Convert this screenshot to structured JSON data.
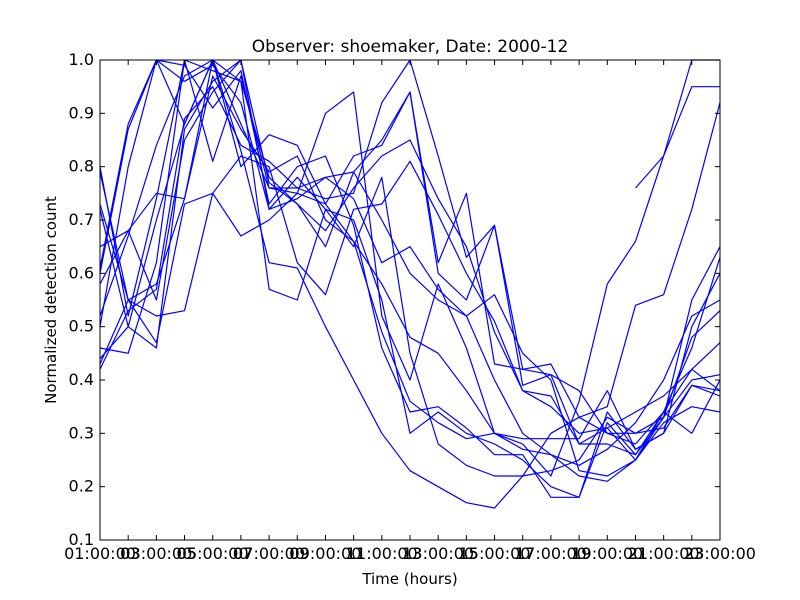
{
  "chart_data": {
    "type": "line",
    "title": "Observer: shoemaker, Date: 2000-12",
    "xlabel": "Time (hours)",
    "ylabel": "Normalized detection count",
    "xlim": [
      1,
      23
    ],
    "ylim": [
      0.1,
      1.0
    ],
    "grid": false,
    "line_color": "#0000ff",
    "x_ticks": [
      {
        "value": 1,
        "label": "01:00:00"
      },
      {
        "value": 3,
        "label": "03:00:00"
      },
      {
        "value": 5,
        "label": "05:00:00"
      },
      {
        "value": 7,
        "label": "07:00:00"
      },
      {
        "value": 9,
        "label": "09:00:00"
      },
      {
        "value": 11,
        "label": "11:00:00"
      },
      {
        "value": 13,
        "label": "13:00:00"
      },
      {
        "value": 15,
        "label": "15:00:00"
      },
      {
        "value": 17,
        "label": "17:00:00"
      },
      {
        "value": 19,
        "label": "19:00:00"
      },
      {
        "value": 21,
        "label": "21:00:00"
      },
      {
        "value": 23,
        "label": "23:00:00"
      }
    ],
    "x_minor_labels": [
      {
        "value": 2,
        "label": "03"
      },
      {
        "value": 4,
        "label": "05"
      },
      {
        "value": 6,
        "label": "07"
      },
      {
        "value": 8,
        "label": "09"
      },
      {
        "value": 10,
        "label": "11"
      },
      {
        "value": 12,
        "label": "13"
      },
      {
        "value": 14,
        "label": "15"
      },
      {
        "value": 16,
        "label": "17"
      },
      {
        "value": 18,
        "label": "19"
      },
      {
        "value": 20,
        "label": "21"
      },
      {
        "value": 22,
        "label": "23"
      }
    ],
    "y_ticks": [
      {
        "value": 0.1,
        "label": "0.1"
      },
      {
        "value": 0.2,
        "label": "0.2"
      },
      {
        "value": 0.3,
        "label": "0.3"
      },
      {
        "value": 0.4,
        "label": "0.4"
      },
      {
        "value": 0.5,
        "label": "0.5"
      },
      {
        "value": 0.6,
        "label": "0.6"
      },
      {
        "value": 0.7,
        "label": "0.7"
      },
      {
        "value": 0.8,
        "label": "0.8"
      },
      {
        "value": 0.9,
        "label": "0.9"
      },
      {
        "value": 1.0,
        "label": "1.0"
      }
    ],
    "x": [
      1,
      2,
      3,
      4,
      5,
      6,
      7,
      8,
      9,
      10,
      11,
      12,
      13,
      14,
      15,
      16,
      17,
      18,
      19,
      20,
      21,
      22,
      23
    ],
    "series": [
      {
        "values": [
          0.8,
          0.52,
          0.74,
          1.0,
          0.81,
          0.97,
          0.76,
          0.75,
          0.9,
          0.94,
          0.52,
          0.4,
          0.58,
          0.46,
          0.3,
          0.29,
          0.29,
          0.29,
          0.38,
          0.27,
          0.3,
          0.5,
          0.6
        ]
      },
      {
        "values": [
          0.61,
          0.88,
          1.0,
          0.96,
          0.99,
          0.92,
          0.72,
          0.78,
          0.72,
          0.7,
          0.55,
          0.3,
          0.34,
          0.3,
          0.28,
          0.25,
          0.2,
          0.18,
          0.32,
          0.26,
          0.33,
          0.55,
          0.65
        ]
      },
      {
        "values": [
          0.5,
          0.8,
          1.0,
          0.99,
          0.91,
          0.98,
          0.73,
          0.8,
          0.82,
          0.69,
          0.46,
          0.34,
          0.35,
          0.31,
          0.26,
          0.26,
          0.18,
          0.18,
          0.34,
          0.27,
          0.3,
          0.39,
          0.38
        ]
      },
      {
        "values": [
          0.72,
          0.5,
          0.7,
          0.88,
          1.0,
          0.8,
          0.86,
          0.84,
          0.73,
          0.82,
          0.84,
          0.94,
          0.62,
          0.75,
          0.43,
          0.42,
          0.41,
          0.28,
          0.31,
          0.25,
          0.33,
          0.48,
          0.53
        ]
      },
      {
        "values": [
          0.58,
          0.68,
          0.75,
          0.74,
          1.0,
          0.88,
          0.76,
          0.76,
          0.74,
          0.75,
          0.92,
          1.0,
          0.82,
          0.63,
          0.69,
          0.42,
          0.43,
          0.33,
          0.3,
          0.28,
          0.34,
          0.3,
          0.4
        ]
      },
      {
        "values": [
          0.46,
          0.45,
          0.62,
          1.0,
          0.98,
          0.96,
          0.78,
          0.73,
          0.65,
          0.79,
          0.85,
          0.94,
          0.6,
          0.55,
          0.69,
          0.39,
          0.41,
          0.38,
          0.3,
          0.3,
          0.31,
          0.39,
          0.37
        ]
      },
      {
        "values": [
          0.43,
          0.55,
          0.47,
          0.73,
          0.75,
          0.82,
          0.8,
          0.62,
          0.56,
          0.72,
          0.73,
          0.81,
          0.71,
          0.6,
          0.51,
          0.38,
          0.37,
          0.28,
          0.28,
          0.26,
          0.34,
          0.42,
          0.47
        ]
      },
      {
        "values": [
          0.6,
          0.87,
          1.0,
          0.88,
          1.0,
          0.96,
          0.57,
          0.55,
          0.72,
          0.65,
          0.78,
          0.45,
          0.28,
          0.24,
          0.22,
          0.22,
          0.23,
          0.25,
          0.33,
          0.3,
          0.33,
          0.4,
          0.41
        ]
      },
      {
        "values": [
          0.65,
          0.68,
          0.55,
          0.85,
          0.94,
          1.0,
          0.72,
          0.74,
          0.78,
          0.74,
          0.62,
          0.65,
          0.57,
          0.52,
          0.56,
          0.45,
          0.4,
          0.23,
          0.22,
          0.25,
          0.32,
          0.35,
          0.34
        ]
      },
      {
        "values": [
          0.44,
          0.5,
          0.46,
          0.87,
          0.96,
          1.0,
          0.77,
          0.73,
          0.68,
          0.76,
          0.82,
          0.85,
          0.74,
          0.65,
          0.49,
          0.38,
          0.35,
          0.3,
          0.31,
          0.34,
          0.37,
          0.42,
          0.38
        ]
      },
      {
        "values": [
          0.73,
          0.55,
          0.52,
          0.53,
          0.75,
          0.67,
          0.7,
          0.75,
          0.73,
          0.66,
          0.49,
          0.36,
          0.32,
          0.29,
          0.3,
          0.27,
          0.26,
          0.24,
          0.27,
          0.32,
          0.4,
          0.52,
          0.55
        ]
      },
      {
        "values": [
          0.42,
          0.53,
          0.57,
          0.89,
          0.95,
          0.84,
          0.81,
          0.76,
          0.78,
          0.79,
          0.7,
          0.6,
          0.55,
          0.52,
          0.4,
          0.3,
          0.26,
          0.22,
          0.21,
          0.25,
          0.34,
          0.46,
          0.63
        ]
      },
      {
        "values": [
          0.52,
          0.67,
          0.84,
          0.97,
          1.0,
          0.83,
          0.62,
          0.61,
          0.5,
          0.4,
          0.3,
          0.23,
          0.2,
          0.17,
          0.16,
          0.22,
          0.3,
          0.33,
          0.35,
          0.54,
          0.56,
          0.72,
          0.92
        ]
      },
      {
        "values": [
          null,
          null,
          null,
          null,
          null,
          null,
          null,
          null,
          null,
          null,
          null,
          null,
          null,
          null,
          null,
          null,
          null,
          null,
          null,
          0.76,
          0.82,
          0.95,
          0.95
        ]
      },
      {
        "values": [
          0.79,
          0.55,
          0.58,
          0.74,
          0.97,
          0.87,
          0.79,
          0.82,
          0.7,
          0.66,
          0.58,
          0.48,
          0.45,
          0.38,
          0.3,
          0.28,
          0.22,
          0.36,
          0.58,
          0.66,
          0.82,
          1.0,
          1.0
        ]
      }
    ]
  }
}
